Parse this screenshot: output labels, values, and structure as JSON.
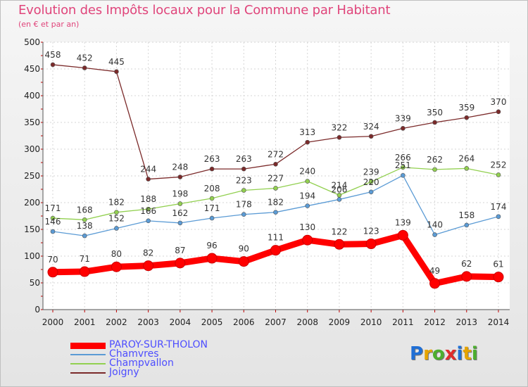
{
  "header": {
    "title": "Evolution des Impôts locaux pour la Commune par Habitant",
    "subtitle": "(en € et par an)"
  },
  "logo": {
    "letters": [
      "P",
      "r",
      "o",
      "x",
      "i",
      "t",
      "i"
    ]
  },
  "colors": {
    "text_accent": "#e0457b",
    "legend_text": "#4d4dff",
    "logo_letters": [
      "#1f6fd6",
      "#e6a400",
      "#4cae2e",
      "#e02c2c",
      "#1f6fd6",
      "#e6a400",
      "#4cae2e"
    ]
  },
  "chart_data": {
    "type": "line",
    "x": [
      "2000",
      "2001",
      "2002",
      "2003",
      "2004",
      "2005",
      "2006",
      "2007",
      "2008",
      "2009",
      "2010",
      "2011",
      "2012",
      "2013",
      "2014"
    ],
    "ylim": [
      0,
      500
    ],
    "yticks": [
      0,
      50,
      100,
      150,
      200,
      250,
      300,
      350,
      400,
      450,
      500
    ],
    "grid": true,
    "legend_position": "bottom-left",
    "series": [
      {
        "name": "PAROY-SUR-THOLON",
        "color": "#ff0000",
        "values": [
          70,
          71,
          80,
          82,
          87,
          96,
          90,
          111,
          130,
          122,
          123,
          139,
          49,
          62,
          61
        ]
      },
      {
        "name": "Chamvres",
        "color": "#5b9bd5",
        "values": [
          146,
          138,
          152,
          166,
          162,
          171,
          178,
          182,
          194,
          206,
          220,
          251,
          140,
          158,
          174
        ]
      },
      {
        "name": "Champvallon",
        "color": "#92d050",
        "values": [
          171,
          168,
          182,
          188,
          198,
          208,
          223,
          227,
          240,
          214,
          239,
          266,
          262,
          264,
          252
        ]
      },
      {
        "name": "Joigny",
        "color": "#7b2a2a",
        "values": [
          458,
          452,
          445,
          244,
          248,
          263,
          263,
          272,
          313,
          322,
          324,
          339,
          350,
          359,
          370
        ]
      }
    ]
  }
}
